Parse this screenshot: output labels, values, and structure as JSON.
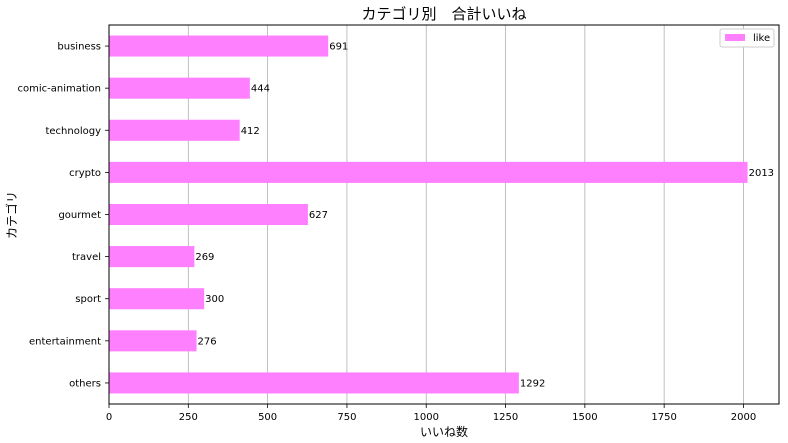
{
  "chart_data": {
    "type": "bar",
    "orientation": "horizontal",
    "title": "カテゴリ別　合計いいね",
    "xlabel": "いいね数",
    "ylabel": "カテゴリ",
    "categories": [
      "business",
      "comic-animation",
      "technology",
      "crypto",
      "gourmet",
      "travel",
      "sport",
      "entertainment",
      "others"
    ],
    "series": [
      {
        "name": "like",
        "values": [
          691,
          444,
          412,
          2013,
          627,
          269,
          300,
          276,
          1292
        ],
        "color": "#ff80ff"
      }
    ],
    "xlim": [
      0,
      2112
    ],
    "xticks": [
      0,
      250,
      500,
      750,
      1000,
      1250,
      1500,
      1750,
      2000
    ],
    "grid": "x",
    "legend": "top-right",
    "data_labels": true
  }
}
